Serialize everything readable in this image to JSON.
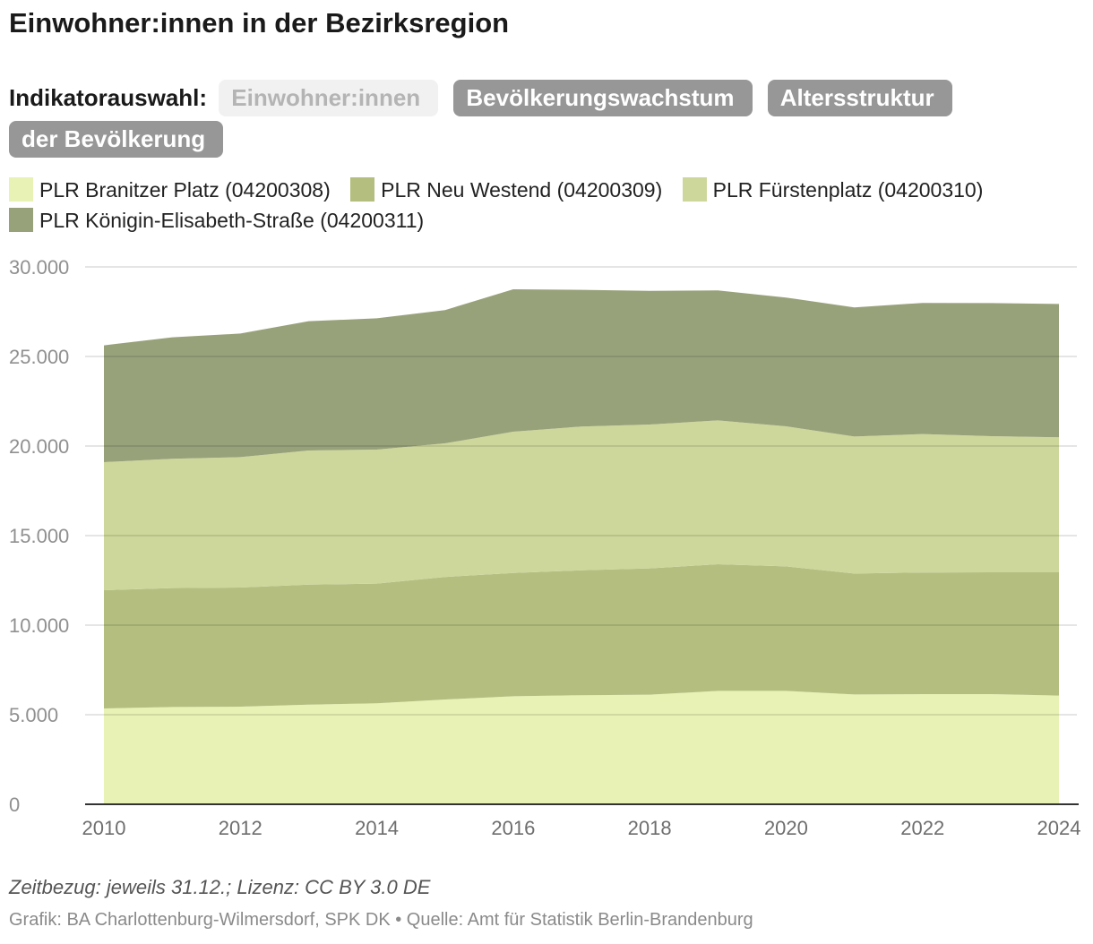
{
  "title": "Einwohner:innen in der Bezirksregion",
  "indicator": {
    "label": "Indikatorauswahl:",
    "options": [
      "Einwohner:innen",
      "Bevölkerungswachstum",
      "Altersstruktur der Bevölkerung"
    ],
    "active_index": 0
  },
  "colors": {
    "series": [
      "#e8f2b4",
      "#b3be7f",
      "#cdd79b",
      "#98a27a"
    ],
    "grid": "#dddddd",
    "baseline": "#333333",
    "pill_active_bg": "#f1f1f1",
    "pill_inactive_bg": "#979797"
  },
  "chart_data": {
    "type": "area",
    "stacked": true,
    "x": [
      2010,
      2011,
      2012,
      2013,
      2014,
      2015,
      2016,
      2017,
      2018,
      2019,
      2020,
      2021,
      2022,
      2023,
      2024
    ],
    "series": [
      {
        "name": "PLR Branitzer Platz (04200308)",
        "values": [
          5350,
          5430,
          5450,
          5560,
          5640,
          5850,
          6030,
          6090,
          6120,
          6330,
          6330,
          6130,
          6150,
          6150,
          6070
        ]
      },
      {
        "name": "PLR Neu Westend (04200309)",
        "values": [
          6600,
          6640,
          6650,
          6700,
          6680,
          6840,
          6880,
          6970,
          7050,
          7070,
          6950,
          6750,
          6790,
          6800,
          6880
        ]
      },
      {
        "name": "PLR Fürstenplatz (04200310)",
        "values": [
          7150,
          7220,
          7280,
          7490,
          7480,
          7460,
          7890,
          8030,
          8030,
          8030,
          7820,
          7650,
          7730,
          7600,
          7540
        ]
      },
      {
        "name": "PLR Königin-Elisabeth-Straße (04200311)",
        "values": [
          6520,
          6780,
          6900,
          7220,
          7330,
          7440,
          7950,
          7630,
          7460,
          7260,
          7190,
          7210,
          7320,
          7430,
          7440
        ]
      }
    ],
    "ylim": [
      0,
      30000
    ],
    "y_ticks": [
      0,
      5000,
      10000,
      15000,
      20000,
      25000,
      30000
    ],
    "y_tick_labels": [
      "0",
      "5.000",
      "10.000",
      "15.000",
      "20.000",
      "25.000",
      "30.000"
    ],
    "x_ticks": [
      2010,
      2012,
      2014,
      2016,
      2018,
      2020,
      2022,
      2024
    ],
    "x_tick_labels": [
      "2010",
      "2012",
      "2014",
      "2016",
      "2018",
      "2020",
      "2022",
      "2024"
    ],
    "grid": true,
    "legend_position": "top"
  },
  "footer": {
    "note": "Zeitbezug: jeweils 31.12.; Lizenz: CC BY 3.0 DE",
    "credits": "Grafik: BA Charlottenburg-Wilmersdorf, SPK DK • Quelle: Amt für Statistik Berlin-Brandenburg"
  }
}
